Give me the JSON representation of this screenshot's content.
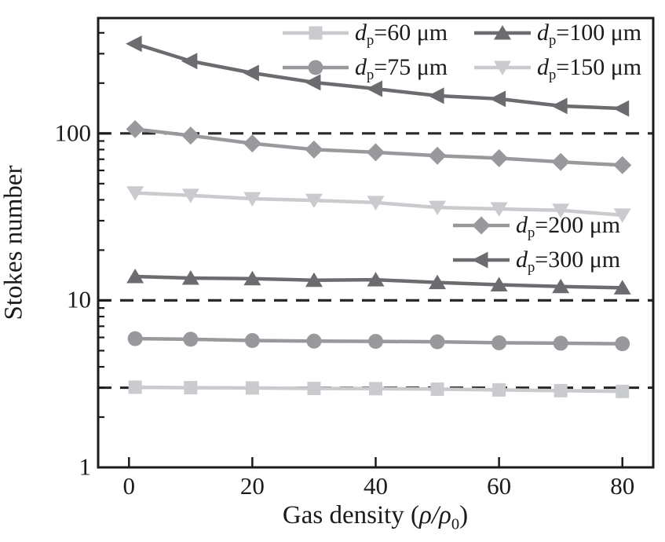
{
  "axis": {
    "y_label": "Stokes number",
    "x_label_prefix": "Gas density (",
    "x_label_italic": "ρ/ρ",
    "x_label_sub": "0",
    "x_label_suffix": ")"
  },
  "chart_data": {
    "type": "line",
    "title": "",
    "xlabel": "Gas density (ρ/ρ0)",
    "ylabel": "Stokes number",
    "x_scale": "linear",
    "y_scale": "log",
    "xlim": [
      -5,
      85
    ],
    "ylim": [
      1,
      490
    ],
    "x_ticks": [
      0,
      20,
      40,
      60,
      80
    ],
    "x_tick_labels": [
      "0",
      "20",
      "40",
      "60",
      "80"
    ],
    "y_ticks": [
      1,
      10,
      100
    ],
    "y_tick_labels": [
      "1",
      "10",
      "100"
    ],
    "y_minor_ticks": [
      2,
      3,
      4,
      5,
      6,
      7,
      8,
      9,
      20,
      30,
      40,
      50,
      60,
      70,
      80,
      90,
      200,
      300,
      400
    ],
    "dashed_hlines": [
      100,
      10,
      3
    ],
    "grid": "dashed-horizontal-reference-lines",
    "legend_position": "two blocks inside plot: top-center (2x2) and middle-right (1x2)",
    "x": [
      1,
      10,
      20,
      30,
      40,
      50,
      60,
      70,
      80
    ],
    "series": [
      {
        "name": "dp=60 um",
        "marker": "square",
        "color_key": "light",
        "values": [
          3.02,
          3.0,
          2.99,
          2.97,
          2.96,
          2.94,
          2.91,
          2.88,
          2.85
        ]
      },
      {
        "name": "dp=75 um",
        "marker": "circle",
        "color_key": "medium",
        "values": [
          5.9,
          5.85,
          5.75,
          5.7,
          5.68,
          5.65,
          5.57,
          5.54,
          5.5
        ]
      },
      {
        "name": "dp=100 um",
        "marker": "triangle-up",
        "color_key": "dark",
        "values": [
          13.9,
          13.6,
          13.5,
          13.2,
          13.3,
          12.8,
          12.4,
          12.1,
          11.9
        ]
      },
      {
        "name": "dp=150 um",
        "marker": "triangle-down",
        "color_key": "light",
        "values": [
          44,
          42.5,
          40.6,
          39.7,
          38.5,
          36.0,
          35.3,
          34.6,
          32.4
        ]
      },
      {
        "name": "dp=200 um",
        "marker": "diamond",
        "color_key": "medium",
        "values": [
          106,
          97,
          87,
          80,
          77,
          73.5,
          71,
          67.5,
          64.5
        ]
      },
      {
        "name": "dp=300 um",
        "marker": "triangle-left",
        "color_key": "dark",
        "values": [
          344,
          271,
          230,
          202,
          185,
          168,
          161,
          146,
          141
        ]
      }
    ],
    "legend": {
      "top": [
        {
          "series": 0,
          "prefix": "d",
          "sub": "p",
          "rest": "=60 μm"
        },
        {
          "series": 2,
          "prefix": "d",
          "sub": "p",
          "rest": "=100 μm"
        },
        {
          "series": 1,
          "prefix": "d",
          "sub": "p",
          "rest": "=75 μm"
        },
        {
          "series": 3,
          "prefix": "d",
          "sub": "p",
          "rest": "=150 μm"
        }
      ],
      "mid": [
        {
          "series": 4,
          "prefix": "d",
          "sub": "p",
          "rest": "=200 μm"
        },
        {
          "series": 5,
          "prefix": "d",
          "sub": "p",
          "rest": "=300 μm"
        }
      ]
    },
    "colors": {
      "light": "#c9cbce",
      "medium": "#98999c",
      "dark": "#6b6c70",
      "axis": "#1b1b1b",
      "dash": "#2a2a2a"
    }
  }
}
